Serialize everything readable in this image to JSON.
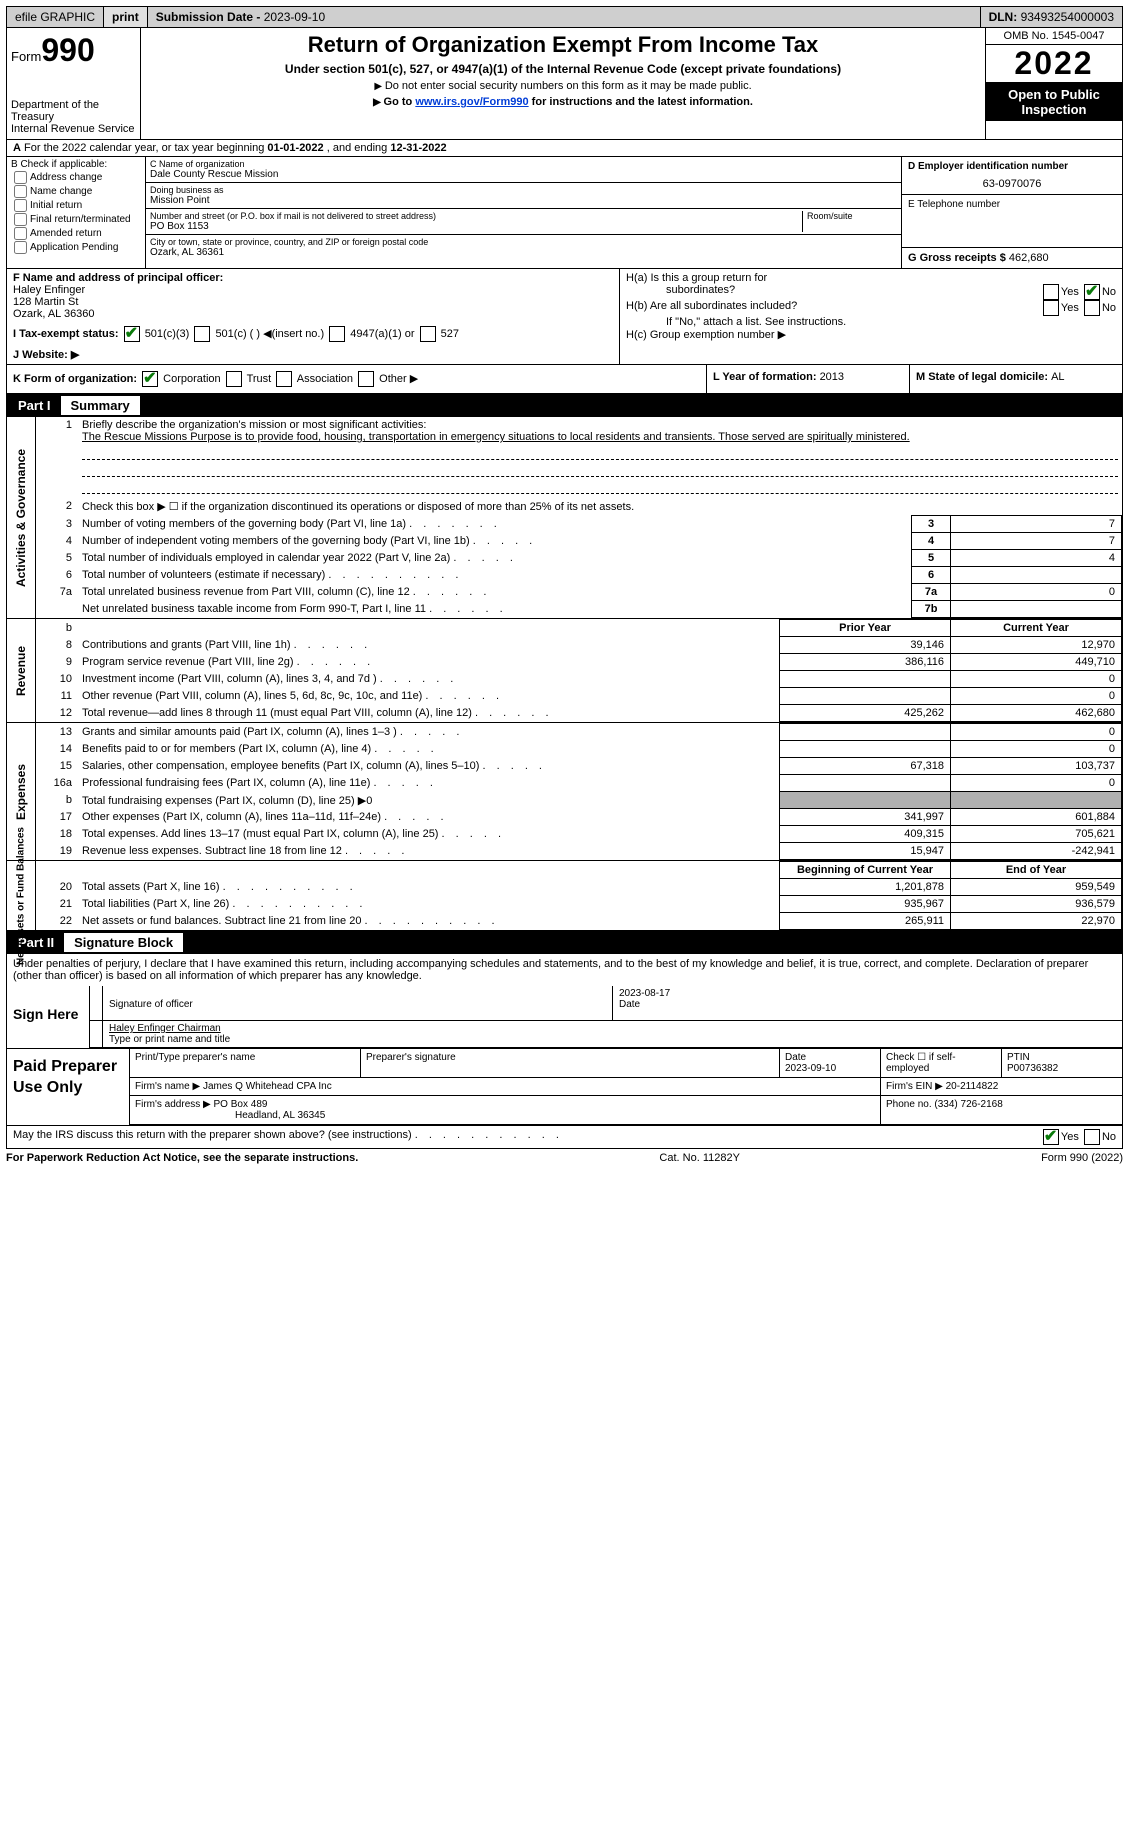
{
  "header_bar": {
    "efile": "efile GRAPHIC",
    "print": "print",
    "sub_date_lbl": "Submission Date - ",
    "sub_date": "2023-09-10",
    "dln_lbl": "DLN: ",
    "dln": "93493254000003"
  },
  "top": {
    "form": "Form",
    "f990": "990",
    "title": "Return of Organization Exempt From Income Tax",
    "sub1": "Under section 501(c), 527, or 4947(a)(1) of the Internal Revenue Code (except private foundations)",
    "sub2": "Do not enter social security numbers on this form as it may be made public.",
    "sub3a": "Go to ",
    "sub3link": "www.irs.gov/Form990",
    "sub3b": " for instructions and the latest information.",
    "dept": "Department of the Treasury",
    "irs": "Internal Revenue Service",
    "omb": "OMB No. 1545-0047",
    "year": "2022",
    "otp": "Open to Public Inspection"
  },
  "rowA": {
    "a": "A",
    "txt": "For the 2022 calendar year, or tax year beginning ",
    "d1": "01-01-2022",
    "c": " , and ending ",
    "d2": "12-31-2022"
  },
  "colB": {
    "hdr": "B Check if applicable:",
    "items": [
      "Address change",
      "Name change",
      "Initial return",
      "Final return/terminated",
      "Amended return",
      "Application Pending"
    ]
  },
  "colC": {
    "c_lbl": "C Name of organization",
    "c_val": "Dale County Rescue Mission",
    "dba_lbl": "Doing business as",
    "dba_val": "Mission Point",
    "addr_lbl": "Number and street (or P.O. box if mail is not delivered to street address)",
    "room": "Room/suite",
    "addr_val": "PO Box 1153",
    "city_lbl": "City or town, state or province, country, and ZIP or foreign postal code",
    "city_val": "Ozark, AL  36361"
  },
  "colD": {
    "d_lbl": "D Employer identification number",
    "d_val": "63-0970076",
    "e_lbl": "E Telephone number",
    "g_lbl": "G Gross receipts $",
    "g_val": "462,680"
  },
  "rowF": {
    "f_lbl": "F  Name and address of principal officer:",
    "f_name": "Haley Enfinger",
    "f_addr1": "128 Martin St",
    "f_addr2": "Ozark, AL  36360"
  },
  "rowH": {
    "ha": "H(a)  Is this a group return for",
    "ha2": "subordinates?",
    "hb": "H(b)  Are all subordinates included?",
    "hb2": "If \"No,\" attach a list. See instructions.",
    "hc": "H(c)  Group exemption number ▶",
    "yes": "Yes",
    "no": "No"
  },
  "rowI": {
    "lbl": "I  Tax-exempt status:",
    "o1": "501(c)(3)",
    "o2": "501(c) ( ) ◀(insert no.)",
    "o3": "4947(a)(1) or",
    "o4": "527"
  },
  "rowJ": {
    "lbl": "J  Website: ▶"
  },
  "rowK": {
    "lbl": "K Form of organization:",
    "c": "Corporation",
    "t": "Trust",
    "a": "Association",
    "o": "Other ▶"
  },
  "rowL": {
    "lbl": "L Year of formation: ",
    "val": "2013"
  },
  "rowM": {
    "lbl": "M State of legal domicile: ",
    "val": "AL"
  },
  "parts": {
    "p1": "Part I",
    "p1t": "Summary",
    "p2": "Part II",
    "p2t": "Signature Block"
  },
  "vtabs": {
    "ag": "Activities & Governance",
    "rev": "Revenue",
    "exp": "Expenses",
    "nab": "Net Assets or\nFund Balances"
  },
  "sum": {
    "l1": "Briefly describe the organization's mission or most significant activities:",
    "mission": "The Rescue Missions Purpose is to provide food, housing, transportation in emergency situations to local residents and transients. Those served are spiritually ministered.",
    "l2": "Check this box ▶ ☐ if the organization discontinued its operations or disposed of more than 25% of its net assets.",
    "l3": "Number of voting members of the governing body (Part VI, line 1a)",
    "v3": "7",
    "l4": "Number of independent voting members of the governing body (Part VI, line 1b)",
    "v4": "7",
    "l5": "Total number of individuals employed in calendar year 2022 (Part V, line 2a)",
    "v5": "4",
    "l6": "Total number of volunteers (estimate if necessary)",
    "v6": "",
    "l7a": "Total unrelated business revenue from Part VIII, column (C), line 12",
    "v7a": "0",
    "l7b": "Net unrelated business taxable income from Form 990-T, Part I, line 11",
    "v7b": "",
    "py": "Prior Year",
    "cy": "Current Year",
    "bcy": "Beginning of Current Year",
    "eoy": "End of Year",
    "r": [
      {
        "n": "8",
        "t": "Contributions and grants (Part VIII, line 1h)",
        "p": "39,146",
        "c": "12,970"
      },
      {
        "n": "9",
        "t": "Program service revenue (Part VIII, line 2g)",
        "p": "386,116",
        "c": "449,710"
      },
      {
        "n": "10",
        "t": "Investment income (Part VIII, column (A), lines 3, 4, and 7d )",
        "p": "",
        "c": "0"
      },
      {
        "n": "11",
        "t": "Other revenue (Part VIII, column (A), lines 5, 6d, 8c, 9c, 10c, and 11e)",
        "p": "",
        "c": "0"
      },
      {
        "n": "12",
        "t": "Total revenue—add lines 8 through 11 (must equal Part VIII, column (A), line 12)",
        "p": "425,262",
        "c": "462,680"
      }
    ],
    "e": [
      {
        "n": "13",
        "t": "Grants and similar amounts paid (Part IX, column (A), lines 1–3 )",
        "p": "",
        "c": "0"
      },
      {
        "n": "14",
        "t": "Benefits paid to or for members (Part IX, column (A), line 4)",
        "p": "",
        "c": "0"
      },
      {
        "n": "15",
        "t": "Salaries, other compensation, employee benefits (Part IX, column (A), lines 5–10)",
        "p": "67,318",
        "c": "103,737"
      },
      {
        "n": "16a",
        "t": "Professional fundraising fees (Part IX, column (A), line 11e)",
        "p": "",
        "c": "0"
      },
      {
        "n": "b",
        "t": "Total fundraising expenses (Part IX, column (D), line 25) ▶0",
        "grey": true
      },
      {
        "n": "17",
        "t": "Other expenses (Part IX, column (A), lines 11a–11d, 11f–24e)",
        "p": "341,997",
        "c": "601,884"
      },
      {
        "n": "18",
        "t": "Total expenses. Add lines 13–17 (must equal Part IX, column (A), line 25)",
        "p": "409,315",
        "c": "705,621"
      },
      {
        "n": "19",
        "t": "Revenue less expenses. Subtract line 18 from line 12",
        "p": "15,947",
        "c": "-242,941"
      }
    ],
    "n": [
      {
        "n": "20",
        "t": "Total assets (Part X, line 16)",
        "p": "1,201,878",
        "c": "959,549"
      },
      {
        "n": "21",
        "t": "Total liabilities (Part X, line 26)",
        "p": "935,967",
        "c": "936,579"
      },
      {
        "n": "22",
        "t": "Net assets or fund balances. Subtract line 21 from line 20",
        "p": "265,911",
        "c": "22,970"
      }
    ]
  },
  "sig": {
    "decl": "Under penalties of perjury, I declare that I have examined this return, including accompanying schedules and statements, and to the best of my knowledge and belief, it is true, correct, and complete. Declaration of preparer (other than officer) is based on all information of which preparer has any knowledge.",
    "sign_here": "Sign Here",
    "sig_of": "Signature of officer",
    "date_lbl": "Date",
    "date": "2023-08-17",
    "name": "Haley Enfinger  Chairman",
    "name_lbl": "Type or print name and title"
  },
  "prep": {
    "hdr": "Paid Preparer Use Only",
    "c1": "Print/Type preparer's name",
    "c2": "Preparer's signature",
    "c3": "Date",
    "c3v": "2023-09-10",
    "c4": "Check ☐ if self-employed",
    "c5": "PTIN",
    "c5v": "P00736382",
    "fn_lbl": "Firm's name    ▶",
    "fn": "James Q Whitehead CPA Inc",
    "fein_lbl": "Firm's EIN ▶",
    "fein": "20-2114822",
    "fa_lbl": "Firm's address ▶",
    "fa1": "PO Box 489",
    "fa2": "Headland, AL  36345",
    "ph_lbl": "Phone no.",
    "ph": "(334) 726-2168"
  },
  "may": {
    "txt": "May the IRS discuss this return with the preparer shown above? (see instructions)",
    "yes": "Yes",
    "no": "No"
  },
  "foot": {
    "l": "For Paperwork Reduction Act Notice, see the separate instructions.",
    "c": "Cat. No. 11282Y",
    "r": "Form 990 (2022)"
  }
}
